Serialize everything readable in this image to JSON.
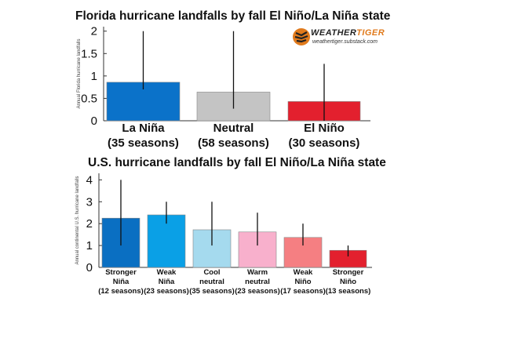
{
  "chart_data": [
    {
      "type": "bar",
      "title": "Florida hurricane landfalls by fall El Niño/La Niña state",
      "ylabel": "Annual Florida hurricane landfalls",
      "ylim": [
        0,
        2.1
      ],
      "yticks": [
        "0",
        "0.5",
        "1",
        "1.5",
        "2"
      ],
      "categories": [
        [
          "La Niña",
          "(35 seasons)"
        ],
        [
          "Neutral",
          "(58 seasons)"
        ],
        [
          "El Niño",
          "(30 seasons)"
        ]
      ],
      "values": [
        0.86,
        0.64,
        0.43
      ],
      "error_low": [
        0.7,
        0.27,
        0.0
      ],
      "error_high": [
        2.0,
        2.0,
        1.27
      ],
      "colors": [
        "#0b72c9",
        "#c4c4c4",
        "#e3202e"
      ],
      "grid": false
    },
    {
      "type": "bar",
      "title": "U.S. hurricane landfalls by fall El Niño/La Niña state",
      "ylabel": "Annual continental U.S. hurricane landfalls",
      "ylim": [
        0,
        4.3
      ],
      "yticks": [
        "0",
        "1",
        "2",
        "3",
        "4"
      ],
      "categories": [
        [
          "Stronger",
          "Niña",
          "(12 seasons)"
        ],
        [
          "Weak",
          "Niña",
          "(23 seasons)"
        ],
        [
          "Cool",
          "neutral",
          "(35 seasons)"
        ],
        [
          "Warm",
          "neutral",
          "(23 seasons)"
        ],
        [
          "Weak",
          "Niño",
          "(17 seasons)"
        ],
        [
          "Stronger",
          "Niño",
          "(13 seasons)"
        ]
      ],
      "values": [
        2.25,
        2.4,
        1.72,
        1.62,
        1.37,
        0.78
      ],
      "error_low": [
        1.0,
        2.0,
        1.0,
        1.0,
        1.0,
        0.5
      ],
      "error_high": [
        4.0,
        3.0,
        3.0,
        2.5,
        2.0,
        1.0
      ],
      "colors": [
        "#0a6fc2",
        "#0aa0e6",
        "#a5daee",
        "#f8b0cc",
        "#f57f82",
        "#e3202e"
      ],
      "grid": false
    }
  ],
  "logo": {
    "word_a": "WEATHER",
    "word_b": "TIGER",
    "url": "weathertiger.substack.com",
    "icon": "tiger-stripes-icon"
  }
}
